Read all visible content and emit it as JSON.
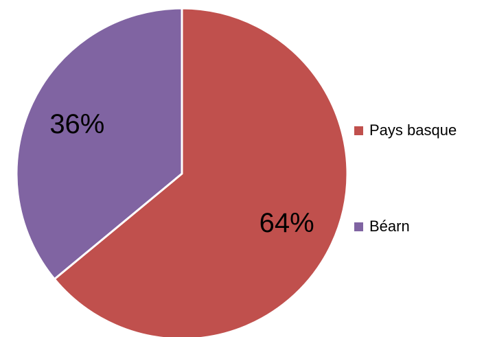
{
  "chart_data": {
    "type": "pie",
    "title": "",
    "legend_position": "right",
    "start_angle_deg": 0,
    "direction": "clockwise",
    "slices": [
      {
        "label": "Pays basque",
        "value": 64,
        "display": "64%",
        "color": "#C0504D"
      },
      {
        "label": "Béarn",
        "value": 36,
        "display": "36%",
        "color": "#8064A2"
      }
    ]
  }
}
